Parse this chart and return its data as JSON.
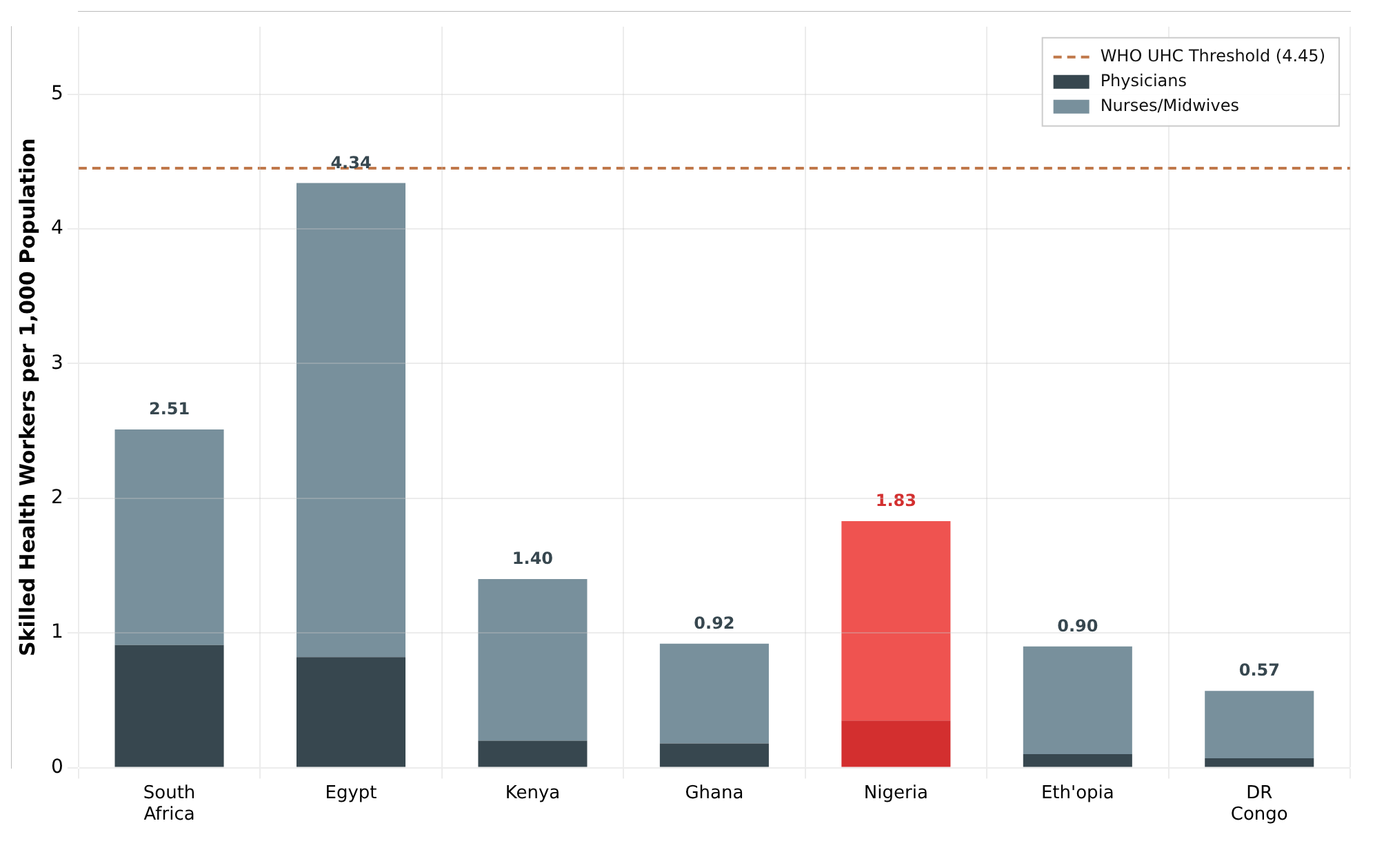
{
  "chart_data": {
    "type": "bar",
    "stacked": true,
    "ylabel": "Skilled Health Workers per 1,000 Population",
    "categories": [
      "South Africa",
      "Egypt",
      "Kenya",
      "Ghana",
      "Nigeria",
      "Eth'opia",
      "DR Congo"
    ],
    "series": [
      {
        "name": "Physicians",
        "color": "#37474f",
        "colors": [
          "#37474f",
          "#37474f",
          "#37474f",
          "#37474f",
          "#d32f2f",
          "#37474f",
          "#37474f"
        ],
        "values": [
          0.91,
          0.82,
          0.2,
          0.18,
          0.35,
          0.1,
          0.07
        ]
      },
      {
        "name": "Nurses/Midwives",
        "color": "#78909c",
        "colors": [
          "#78909c",
          "#78909c",
          "#78909c",
          "#78909c",
          "#ef5350",
          "#78909c",
          "#78909c"
        ],
        "values": [
          1.6,
          3.52,
          1.2,
          0.74,
          1.48,
          0.8,
          0.5
        ]
      }
    ],
    "totals": [
      "2.51",
      "4.34",
      "1.40",
      "0.92",
      "1.83",
      "0.90",
      "0.57"
    ],
    "ref_lines": [
      {
        "axis": "y",
        "value": 4.45,
        "label": "WHO UHC Threshold (4.45)",
        "color": "#c0784a",
        "line_style": "dashed"
      }
    ],
    "ylim": [
      0,
      5.5
    ],
    "yticks": [
      0,
      1,
      2,
      3,
      4,
      5
    ],
    "grid": true,
    "legend": "top right"
  }
}
